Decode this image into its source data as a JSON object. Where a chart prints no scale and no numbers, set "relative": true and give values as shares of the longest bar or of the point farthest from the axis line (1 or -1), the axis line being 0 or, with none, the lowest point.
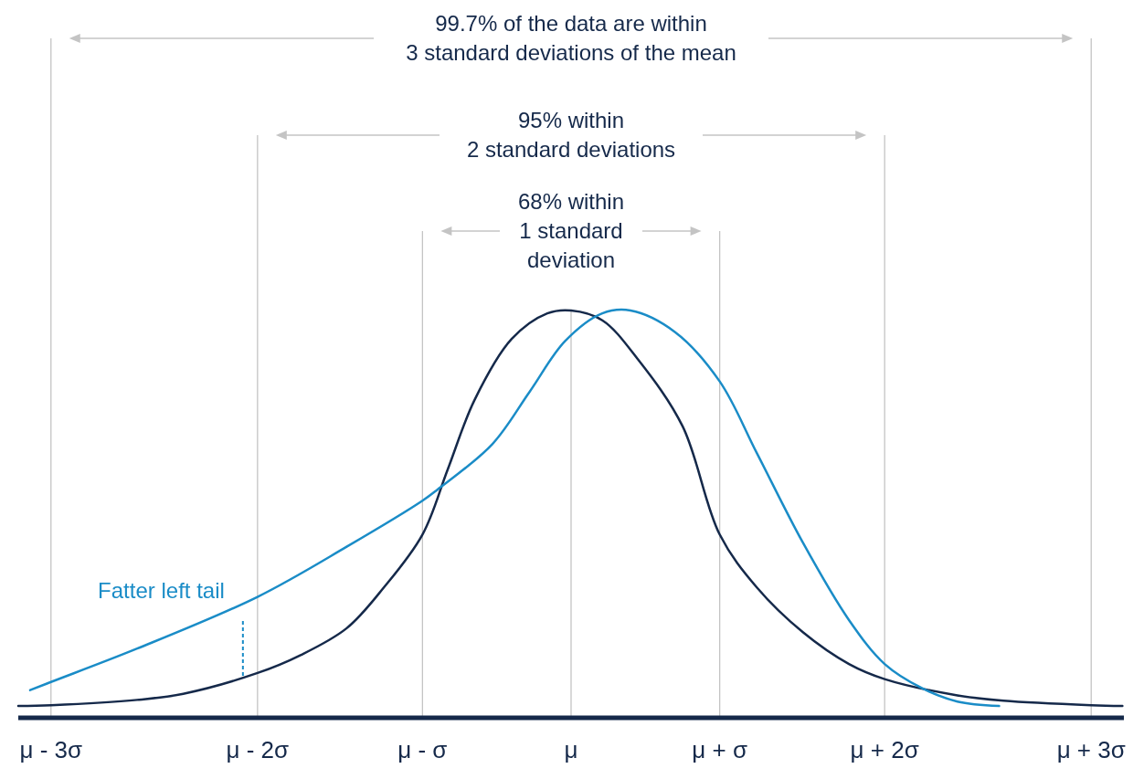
{
  "chart_data": {
    "type": "line",
    "relative": true,
    "grid": "x",
    "xlim": [
      -3.72,
      3.72
    ],
    "xticks": [
      {
        "value": -3.5,
        "label": "μ - 3σ"
      },
      {
        "value": -2.11,
        "label": "μ - 2σ"
      },
      {
        "value": -1,
        "label": "μ - σ"
      },
      {
        "value": 0,
        "label": "μ"
      },
      {
        "value": 1,
        "label": "μ + σ"
      },
      {
        "value": 2.11,
        "label": "μ + 2σ"
      },
      {
        "value": 3.5,
        "label": "μ + 3σ"
      }
    ],
    "series": [
      {
        "color": "#15294a",
        "x": [
          -3.72,
          -3.5,
          -2.92,
          -2.61,
          -2.11,
          -1.82,
          -1.51,
          -1.26,
          -1,
          -0.83,
          -0.65,
          -0.4,
          -0.16,
          0,
          0.21,
          0.45,
          0.75,
          1,
          1.25,
          1.56,
          1.87,
          2.11,
          2.6,
          2.91,
          3.5,
          3.71
        ],
        "values": [
          0.029,
          0.031,
          0.044,
          0.059,
          0.11,
          0.154,
          0.22,
          0.32,
          0.45,
          0.61,
          0.78,
          0.93,
          0.993,
          1,
          0.976,
          0.88,
          0.716,
          0.45,
          0.32,
          0.21,
          0.132,
          0.095,
          0.055,
          0.042,
          0.031,
          0.029
        ]
      },
      {
        "color": "#1a8cc7",
        "x": [
          -3.64,
          -3.5,
          -2.92,
          -2.11,
          -1.51,
          -1,
          -0.9,
          -0.53,
          -0.28,
          -0.04,
          0.21,
          0.4,
          0.7,
          1,
          1.25,
          1.56,
          1.87,
          2.11,
          2.36,
          2.6,
          2.88
        ],
        "values": [
          0.068,
          0.088,
          0.17,
          0.297,
          0.42,
          0.533,
          0.56,
          0.672,
          0.8,
          0.925,
          0.993,
          1,
          0.947,
          0.826,
          0.65,
          0.43,
          0.24,
          0.132,
          0.073,
          0.04,
          0.029
        ]
      }
    ],
    "annotations": [
      "99.7% of the data are within\n3 standard deviations of the mean",
      "95% within\n2 standard deviations",
      "68% within\n1 standard\ndeviation",
      "Fatter left tail"
    ]
  }
}
